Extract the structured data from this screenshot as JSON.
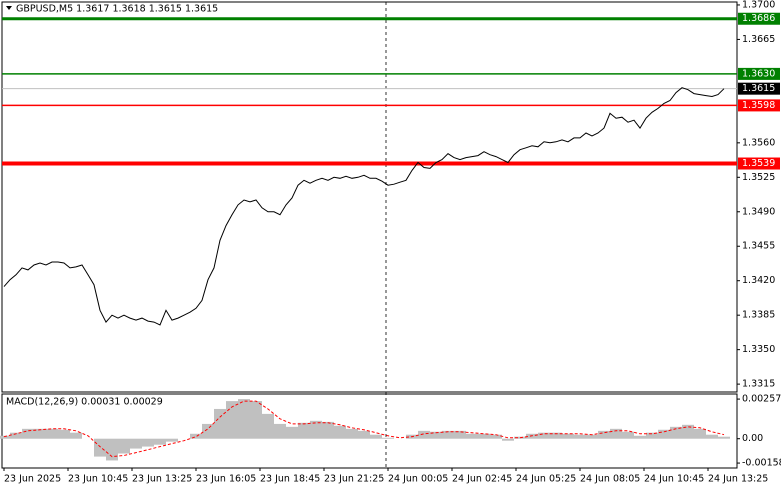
{
  "chart_data": {
    "type": "line",
    "title": "GBPUSD,M5  1.3617 1.3618 1.3615 1.3615",
    "x_labels": [
      "23 Jun 2025",
      "23 Jun 10:45",
      "23 Jun 13:25",
      "23 Jun 16:05",
      "23 Jun 18:45",
      "23 Jun 21:25",
      "24 Jun 00:05",
      "24 Jun 02:45",
      "24 Jun 05:25",
      "24 Jun 08:05",
      "24 Jun 10:45",
      "24 Jun 13:25"
    ],
    "series": [
      {
        "name": "GBPUSD",
        "color": "#000000",
        "values": [
          1.3414,
          1.3421,
          1.3426,
          1.3433,
          1.3431,
          1.3436,
          1.3438,
          1.3436,
          1.3439,
          1.3439,
          1.3438,
          1.3433,
          1.3434,
          1.3436,
          1.3426,
          1.3416,
          1.339,
          1.3378,
          1.3385,
          1.3382,
          1.3385,
          1.3382,
          1.338,
          1.3382,
          1.3379,
          1.3378,
          1.3375,
          1.339,
          1.338,
          1.3382,
          1.3385,
          1.3388,
          1.3392,
          1.34,
          1.3421,
          1.3433,
          1.3461,
          1.3476,
          1.3487,
          1.3497,
          1.3502,
          1.35,
          1.3502,
          1.3494,
          1.349,
          1.349,
          1.3487,
          1.3497,
          1.3504,
          1.3517,
          1.3522,
          1.3519,
          1.3522,
          1.3524,
          1.3522,
          1.3525,
          1.3524,
          1.3526,
          1.3524,
          1.3525,
          1.3527,
          1.3524,
          1.3524,
          1.3521,
          1.3517,
          1.3518,
          1.352,
          1.3522,
          1.3532,
          1.354,
          1.3535,
          1.3534,
          1.354,
          1.3543,
          1.3549,
          1.3545,
          1.3543,
          1.3545,
          1.3546,
          1.3547,
          1.3551,
          1.3548,
          1.3546,
          1.3543,
          1.354,
          1.3548,
          1.3553,
          1.3555,
          1.3557,
          1.3556,
          1.3561,
          1.356,
          1.3561,
          1.3563,
          1.3561,
          1.3565,
          1.3565,
          1.357,
          1.3567,
          1.357,
          1.3575,
          1.359,
          1.3585,
          1.3586,
          1.3581,
          1.3583,
          1.3575,
          1.3585,
          1.3591,
          1.3595,
          1.36,
          1.3603,
          1.3611,
          1.3616,
          1.3614,
          1.361,
          1.3609,
          1.3608,
          1.3607,
          1.3609,
          1.3615
        ]
      }
    ],
    "ylim": [
      1.3307,
      1.3703
    ],
    "yticks": [
      {
        "value": 1.37,
        "label": "1.3700"
      },
      {
        "value": 1.3665,
        "label": "1.3665"
      },
      {
        "value": 1.356,
        "label": "1.3560"
      },
      {
        "value": 1.3525,
        "label": "1.3525"
      },
      {
        "value": 1.349,
        "label": "1.3490"
      },
      {
        "value": 1.3455,
        "label": "1.3455"
      },
      {
        "value": 1.342,
        "label": "1.3420"
      },
      {
        "value": 1.3385,
        "label": "1.3385"
      },
      {
        "value": 1.335,
        "label": "1.3350"
      },
      {
        "value": 1.3315,
        "label": "1.3315"
      }
    ],
    "levels": {
      "values": [
        1.3686,
        1.363,
        1.3598,
        1.3539
      ],
      "value_labels": [
        "1.3686",
        "1.3630",
        "1.3598",
        "1.3539"
      ],
      "colors": [
        "#008000",
        "#008000",
        "#ff0000",
        "#ff0000"
      ],
      "widths": [
        3,
        1.5,
        1.5,
        4
      ]
    },
    "current_price": {
      "value": 1.3615,
      "label": "1.3615"
    },
    "macd": {
      "title": "MACD(12,26,9) 0.00031 0.00029",
      "histogram": {
        "color": "#c0c0c0",
        "values": [
          0.00019,
          0.00039,
          0.00064,
          0.00064,
          0.00064,
          0.00058,
          0.00039,
          0,
          -0.00116,
          -0.00141,
          -0.00096,
          -0.00064,
          -0.00051,
          -0.00039,
          -0.00019,
          0,
          0.00032,
          0.00096,
          0.00193,
          0.00244,
          0.00257,
          0.00244,
          0.00161,
          0.00096,
          0.00077,
          0.00103,
          0.00116,
          0.00109,
          0.00084,
          0.00064,
          0.00051,
          0.00026,
          6e-05,
          0,
          0.00026,
          0.00051,
          0.00045,
          0.00051,
          0.00051,
          0.00032,
          0.00032,
          0.00026,
          -0.00013,
          0.00013,
          0.00032,
          0.00039,
          0.00039,
          0.00032,
          0.00026,
          0.00026,
          0.00051,
          0.00064,
          0.00045,
          0.00019,
          0.00039,
          0.00058,
          0.00077,
          0.0009,
          0.00064,
          0.00026,
          0.00013
        ]
      },
      "signal": {
        "color": "#ff0000",
        "values": [
          0.00013,
          0.00032,
          0.00051,
          0.00058,
          0.00064,
          0.00064,
          0.00051,
          0.00019,
          -0.00051,
          -0.00116,
          -0.00109,
          -0.0009,
          -0.00071,
          -0.00051,
          -0.00032,
          -0.00013,
          0.00013,
          0.00064,
          0.00141,
          0.00206,
          0.00244,
          0.00244,
          0.00193,
          0.00129,
          0.00096,
          0.00096,
          0.00103,
          0.00103,
          0.0009,
          0.00071,
          0.00058,
          0.00039,
          0.00019,
          6e-05,
          0.00013,
          0.00032,
          0.00039,
          0.00045,
          0.00045,
          0.00039,
          0.00032,
          0.00026,
          6e-05,
          6e-05,
          0.00019,
          0.00032,
          0.00032,
          0.00032,
          0.00032,
          0.00026,
          0.00039,
          0.00051,
          0.00051,
          0.00032,
          0.00032,
          0.00045,
          0.00064,
          0.00077,
          0.00071,
          0.00045,
          0.00026
        ]
      },
      "ylim": [
        -0.0019,
        0.0029
      ],
      "yticks": [
        0.00257,
        {
          "value": 0,
          "label": "0.00"
        },
        -0.00158
      ]
    }
  }
}
